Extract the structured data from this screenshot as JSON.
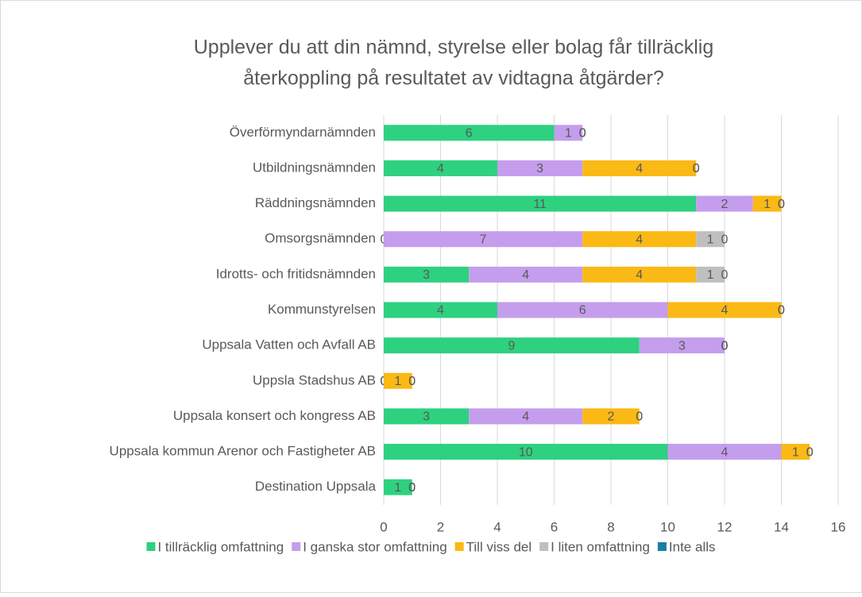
{
  "chart_data": {
    "type": "stacked_barh",
    "title": [
      "Upplever du att din nämnd, styrelse eller bolag får tillräcklig",
      "återkoppling på resultatet av vidtagna åtgärder?"
    ],
    "categories": [
      "Överförmyndarnämnden",
      "Utbildningsnämnden",
      "Räddningsnämnden",
      "Omsorgsnämnden",
      "Idrotts- och fritidsnämnden",
      "Kommunstyrelsen",
      "Uppsala Vatten och Avfall AB",
      "Uppsla Stadshus AB",
      "Uppsala konsert och kongress AB",
      "Uppsala kommun Arenor och Fastigheter AB",
      "Destination Uppsala"
    ],
    "series": [
      {
        "name": "I tillräcklig omfattning",
        "color": "#2ed17f",
        "values": [
          6,
          4,
          11,
          0,
          3,
          4,
          9,
          0,
          3,
          10,
          1
        ]
      },
      {
        "name": "I ganska stor omfattning",
        "color": "#c59ded",
        "values": [
          1,
          3,
          2,
          7,
          4,
          6,
          3,
          0,
          4,
          4,
          0
        ]
      },
      {
        "name": "Till viss del",
        "color": "#fbb915",
        "values": [
          0,
          4,
          1,
          4,
          4,
          4,
          0,
          1,
          2,
          1,
          0
        ]
      },
      {
        "name": "I liten omfattning",
        "color": "#bfbfbf",
        "values": [
          0,
          0,
          0,
          1,
          1,
          0,
          0,
          0,
          0,
          0,
          0
        ]
      },
      {
        "name": "Inte alls",
        "color": "#1a7fa3",
        "values": [
          0,
          0,
          0,
          0,
          0,
          0,
          0,
          0,
          0,
          0,
          0
        ]
      }
    ],
    "xlim": [
      0,
      16
    ],
    "xticks": [
      0,
      2,
      4,
      6,
      8,
      10,
      12,
      14,
      16
    ],
    "grid": true,
    "legend": "bottom"
  }
}
